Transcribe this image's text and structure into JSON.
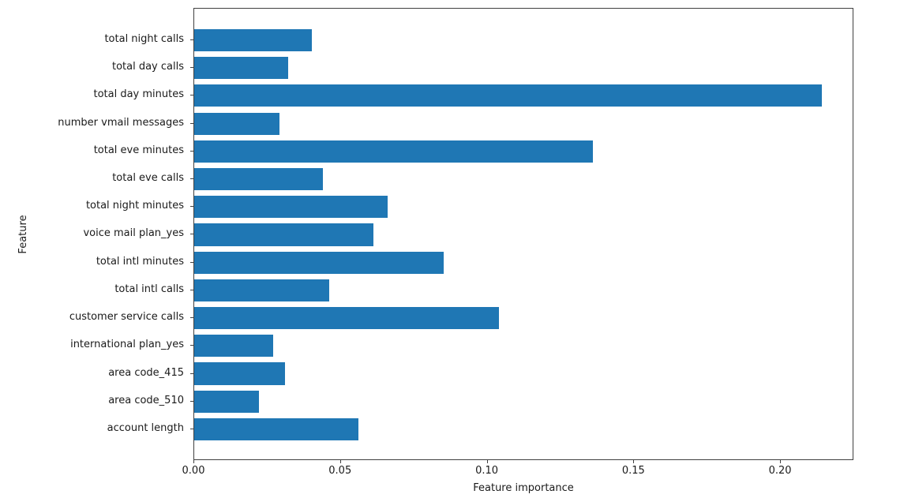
{
  "chart_data": {
    "type": "bar",
    "orientation": "horizontal",
    "title": "",
    "xlabel": "Feature importance",
    "ylabel": "Feature",
    "categories": [
      "total night calls",
      "total day calls",
      "total day minutes",
      "number vmail messages",
      "total eve minutes",
      "total eve calls",
      "total night minutes",
      "voice mail plan_yes",
      "total intl minutes",
      "total intl calls",
      "customer service calls",
      "international plan_yes",
      "area code_415",
      "area code_510",
      "account length"
    ],
    "values": [
      0.04,
      0.032,
      0.214,
      0.029,
      0.136,
      0.044,
      0.066,
      0.061,
      0.085,
      0.046,
      0.104,
      0.027,
      0.031,
      0.022,
      0.056
    ],
    "xlim": [
      0,
      0.225
    ],
    "xticks": [
      0.0,
      0.05,
      0.1,
      0.15,
      0.2
    ],
    "xtick_labels": [
      "0.00",
      "0.05",
      "0.10",
      "0.15",
      "0.20"
    ],
    "grid": false,
    "legend": null,
    "bar_color": "#1f77b4",
    "background_color": "#ffffff",
    "spine_color": "#404040",
    "text_color": "#1a1a1a"
  }
}
